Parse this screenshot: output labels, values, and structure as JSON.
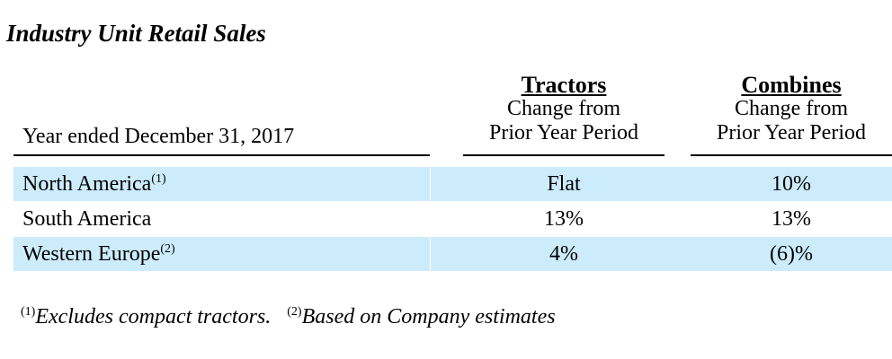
{
  "title": "Industry Unit Retail Sales",
  "header": {
    "year_label": "Year ended December 31, 2017",
    "columns": [
      {
        "heading": "Tractors",
        "line1": "Change from",
        "line2": "Prior Year Period"
      },
      {
        "heading": "Combines",
        "line1": "Change from",
        "line2": "Prior Year Period"
      }
    ]
  },
  "rows": [
    {
      "region": "North America",
      "note": "(1)",
      "tractors": "Flat",
      "combines": "10%"
    },
    {
      "region": "South America",
      "note": "",
      "tractors": "13%",
      "combines": "13%"
    },
    {
      "region": "Western Europe",
      "note": "(2)",
      "tractors": "4%",
      "combines": "(6)%"
    }
  ],
  "footnotes": [
    {
      "mark": "(1)",
      "text": "Excludes compact tractors."
    },
    {
      "mark": "(2)",
      "text": "Based on Company estimates"
    }
  ],
  "colors": {
    "row_shade": "#CCECFC"
  }
}
